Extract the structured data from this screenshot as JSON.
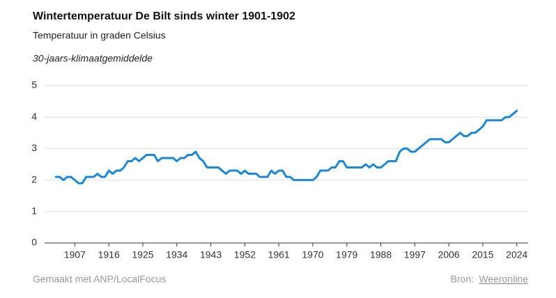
{
  "chart_data": {
    "type": "line",
    "title": "Wintertemperatuur De Bilt sinds winter 1901-1902",
    "subtitle": "Temperatuur in graden Celsius",
    "x": [
      1902,
      1903,
      1904,
      1905,
      1906,
      1907,
      1908,
      1909,
      1910,
      1911,
      1912,
      1913,
      1914,
      1915,
      1916,
      1917,
      1918,
      1919,
      1920,
      1921,
      1922,
      1923,
      1924,
      1925,
      1926,
      1927,
      1928,
      1929,
      1930,
      1931,
      1932,
      1933,
      1934,
      1935,
      1936,
      1937,
      1938,
      1939,
      1940,
      1941,
      1942,
      1943,
      1944,
      1945,
      1946,
      1947,
      1948,
      1949,
      1950,
      1951,
      1952,
      1953,
      1954,
      1955,
      1956,
      1957,
      1958,
      1959,
      1960,
      1961,
      1962,
      1963,
      1964,
      1965,
      1966,
      1967,
      1968,
      1969,
      1970,
      1971,
      1972,
      1973,
      1974,
      1975,
      1976,
      1977,
      1978,
      1979,
      1980,
      1981,
      1982,
      1983,
      1984,
      1985,
      1986,
      1987,
      1988,
      1989,
      1990,
      1991,
      1992,
      1993,
      1994,
      1995,
      1996,
      1997,
      1998,
      1999,
      2000,
      2001,
      2002,
      2003,
      2004,
      2005,
      2006,
      2007,
      2008,
      2009,
      2010,
      2011,
      2012,
      2013,
      2014,
      2015,
      2016,
      2017,
      2018,
      2019,
      2020,
      2021,
      2022,
      2023,
      2024
    ],
    "series": [
      {
        "name": "30-jaars-klimaatgemiddelde",
        "color": "#1a87d8",
        "values": [
          2.1,
          2.1,
          2.0,
          2.1,
          2.1,
          2.0,
          1.9,
          1.9,
          2.1,
          2.1,
          2.1,
          2.2,
          2.1,
          2.1,
          2.3,
          2.2,
          2.3,
          2.3,
          2.4,
          2.6,
          2.6,
          2.7,
          2.6,
          2.7,
          2.8,
          2.8,
          2.8,
          2.6,
          2.7,
          2.7,
          2.7,
          2.7,
          2.6,
          2.7,
          2.7,
          2.8,
          2.8,
          2.9,
          2.7,
          2.6,
          2.4,
          2.4,
          2.4,
          2.4,
          2.3,
          2.2,
          2.3,
          2.3,
          2.3,
          2.2,
          2.3,
          2.2,
          2.2,
          2.2,
          2.1,
          2.1,
          2.1,
          2.3,
          2.2,
          2.3,
          2.3,
          2.1,
          2.1,
          2.0,
          2.0,
          2.0,
          2.0,
          2.0,
          2.0,
          2.1,
          2.3,
          2.3,
          2.3,
          2.4,
          2.4,
          2.6,
          2.6,
          2.4,
          2.4,
          2.4,
          2.4,
          2.4,
          2.5,
          2.4,
          2.5,
          2.4,
          2.4,
          2.5,
          2.6,
          2.6,
          2.6,
          2.9,
          3.0,
          3.0,
          2.9,
          2.9,
          3.0,
          3.1,
          3.2,
          3.3,
          3.3,
          3.3,
          3.3,
          3.2,
          3.2,
          3.3,
          3.4,
          3.5,
          3.4,
          3.4,
          3.5,
          3.5,
          3.6,
          3.7,
          3.9,
          3.9,
          3.9,
          3.9,
          3.9,
          4.0,
          4.0,
          4.1,
          4.2
        ]
      }
    ],
    "xlim": [
      1899,
      2027
    ],
    "xticks": [
      1907,
      1916,
      1925,
      1934,
      1943,
      1952,
      1961,
      1970,
      1979,
      1988,
      1997,
      2006,
      2015,
      2024
    ],
    "ylim": [
      0,
      5
    ],
    "yticks": [
      0,
      1,
      2,
      3,
      4,
      5
    ],
    "grid": true,
    "credit": "Gemaakt met ANP/LocalFocus",
    "source": {
      "label": "Bron:",
      "name": "Weeronline"
    }
  }
}
